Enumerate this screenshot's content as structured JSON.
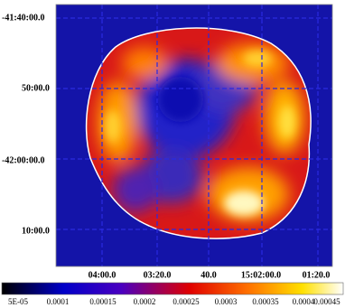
{
  "image": {
    "y_labels": [
      "-41:40:00.0",
      "50:00.0",
      "-42:00:00.0",
      "10:00.0"
    ],
    "x_labels": [
      "04:00.0",
      "03:20.0",
      "40.0",
      "15:02:00.0",
      "01:20.0"
    ]
  },
  "colorbar": {
    "labels": [
      "5E-05",
      "0.0001",
      "0.00015",
      "0.0002",
      "0.00025",
      "0.0003",
      "0.00035",
      "0.0004",
      "0.00045"
    ]
  }
}
